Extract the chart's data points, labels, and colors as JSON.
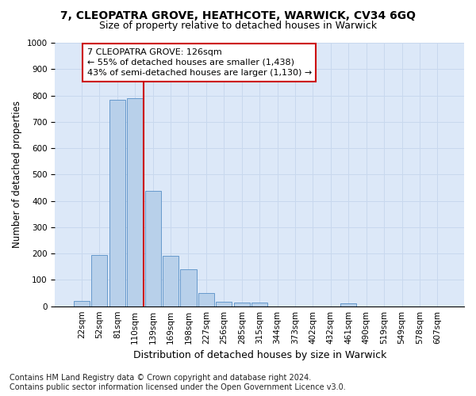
{
  "title1": "7, CLEOPATRA GROVE, HEATHCOTE, WARWICK, CV34 6GQ",
  "title2": "Size of property relative to detached houses in Warwick",
  "xlabel": "Distribution of detached houses by size in Warwick",
  "ylabel": "Number of detached properties",
  "bar_labels": [
    "22sqm",
    "52sqm",
    "81sqm",
    "110sqm",
    "139sqm",
    "169sqm",
    "198sqm",
    "227sqm",
    "256sqm",
    "285sqm",
    "315sqm",
    "344sqm",
    "373sqm",
    "402sqm",
    "432sqm",
    "461sqm",
    "490sqm",
    "519sqm",
    "549sqm",
    "578sqm",
    "607sqm"
  ],
  "bar_values": [
    20,
    195,
    785,
    790,
    438,
    192,
    141,
    50,
    16,
    13,
    13,
    0,
    0,
    0,
    0,
    10,
    0,
    0,
    0,
    0,
    0
  ],
  "bar_color": "#b8d0ea",
  "bar_edge_color": "#6699cc",
  "vline_color": "#cc0000",
  "vline_x": 3.5,
  "annotation_line1": "7 CLEOPATRA GROVE: 126sqm",
  "annotation_line2": "← 55% of detached houses are smaller (1,438)",
  "annotation_line3": "43% of semi-detached houses are larger (1,130) →",
  "annotation_box_color": "#cc0000",
  "annotation_bg": "#ffffff",
  "ylim": [
    0,
    1000
  ],
  "yticks": [
    0,
    100,
    200,
    300,
    400,
    500,
    600,
    700,
    800,
    900,
    1000
  ],
  "grid_color": "#c8d8ee",
  "bg_color": "#dce8f8",
  "footer1": "Contains HM Land Registry data © Crown copyright and database right 2024.",
  "footer2": "Contains public sector information licensed under the Open Government Licence v3.0.",
  "title1_fontsize": 10,
  "title2_fontsize": 9,
  "xlabel_fontsize": 9,
  "ylabel_fontsize": 8.5,
  "tick_fontsize": 7.5,
  "footer_fontsize": 7,
  "annot_fontsize": 8
}
